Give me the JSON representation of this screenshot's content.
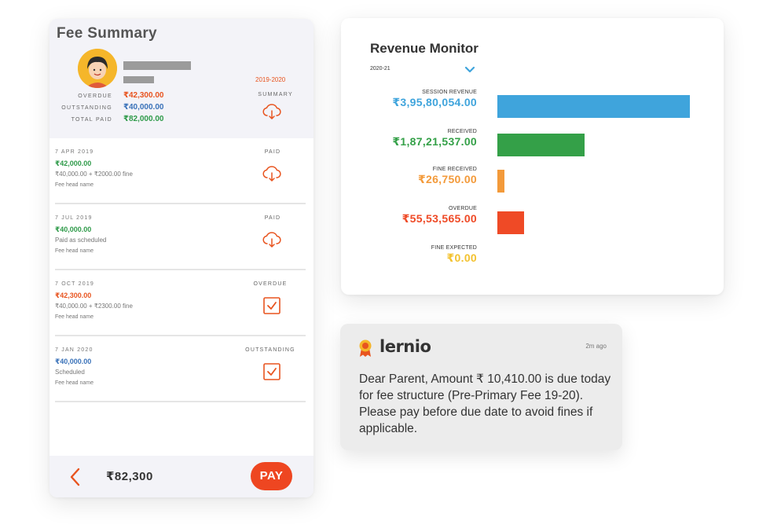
{
  "fee_summary": {
    "title": "Fee Summary",
    "year": "2019-2020",
    "summary_label": "SUMMARY",
    "overdue_label": "OVERDUE",
    "outstanding_label": "OUTSTANDING",
    "total_paid_label": "TOTAL PAID",
    "overdue_value": "₹42,300.00",
    "outstanding_value": "₹40,000.00",
    "total_paid_value": "₹82,000.00",
    "rows": [
      {
        "date": "7 APR 2019",
        "amount": "₹42,000.00",
        "detail": "₹40,000.00 + ₹2000.00 fine",
        "head": "Fee head name",
        "status": "PAID",
        "icon": "cloud-download-icon"
      },
      {
        "date": "7 JUL 2019",
        "amount": "₹40,000.00",
        "detail": "Paid as scheduled",
        "head": "Fee head name",
        "status": "PAID",
        "icon": "cloud-download-icon"
      },
      {
        "date": "7 OCT 2019",
        "amount": "₹42,300.00",
        "detail": "₹40,000.00 + ₹2300.00 fine",
        "head": "Fee head name",
        "status": "OVERDUE",
        "icon": "checkbox-checked-icon"
      },
      {
        "date": "7 JAN 2020",
        "amount": "₹40,000.00",
        "detail": "Scheduled",
        "head": "Fee head name",
        "status": "OUTSTANDING",
        "icon": "checkbox-checked-icon"
      }
    ],
    "footer": {
      "total": "₹82,300",
      "pay_label": "PAY"
    }
  },
  "revenue_monitor": {
    "title": "Revenue Monitor",
    "period": "2020-21",
    "items": [
      {
        "label": "SESSION REVENUE",
        "value": "₹3,95,80,054.00",
        "color": "#3fa4dc"
      },
      {
        "label": "RECEIVED",
        "value": "₹1,87,21,537.00",
        "color": "#34a048"
      },
      {
        "label": "FINE RECEIVED",
        "value": "₹26,750.00",
        "color": "#f39a3a"
      },
      {
        "label": "OVERDUE",
        "value": "₹55,53,565.00",
        "color": "#ef4a26"
      },
      {
        "label": "FINE EXPECTED",
        "value": "₹0.00",
        "color": "#f3c22f"
      }
    ]
  },
  "notification": {
    "brand": "lernio",
    "time": "2m ago",
    "message": "Dear Parent, Amount ₹ 10,410.00 is due today for fee structure (Pre-Primary Fee 19-20). Please pay before due date to avoid fines if applicable."
  },
  "colors": {
    "accent_red": "#e8541f",
    "blue": "#3a72b9",
    "green": "#2e9a49",
    "pay_button": "#ee4621"
  }
}
